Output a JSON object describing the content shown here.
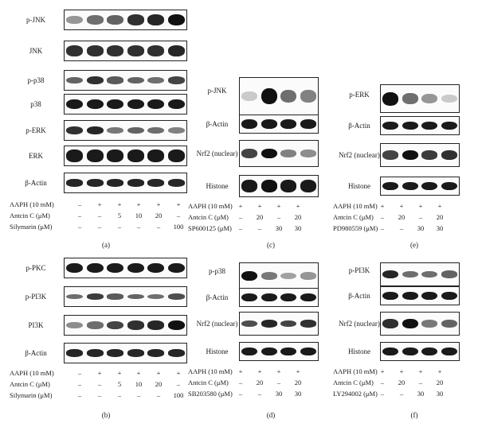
{
  "panels": [
    {
      "letter": "(a)",
      "rows": [
        {
          "label": "p-JNK"
        },
        {
          "label": "JNK"
        },
        {
          "label": "p-p38"
        },
        {
          "label": "p38"
        },
        {
          "label": "p-ERK"
        },
        {
          "label": "ERK"
        },
        {
          "label": "β-Actin"
        }
      ],
      "conditions": [
        {
          "label": "AAPH (10 mM)",
          "values": [
            "–",
            "+",
            "+",
            "+",
            "+",
            "+"
          ]
        },
        {
          "label": "Antcin C (μM)",
          "values": [
            "–",
            "–",
            "5",
            "10",
            "20",
            "–"
          ]
        },
        {
          "label": "Silymarin (μM)",
          "values": [
            "–",
            "–",
            "–",
            "–",
            "–",
            "100"
          ]
        }
      ]
    },
    {
      "letter": "(b)",
      "rows": [
        {
          "label": "p-PKC"
        },
        {
          "label": "p-PI3K"
        },
        {
          "label": "PI3K"
        },
        {
          "label": "β-Actin"
        }
      ],
      "conditions": [
        {
          "label": "AAPH (10 mM)",
          "values": [
            "–",
            "+",
            "+",
            "+",
            "+",
            "+"
          ]
        },
        {
          "label": "Antcin C (μM)",
          "values": [
            "–",
            "–",
            "5",
            "10",
            "20",
            "–"
          ]
        },
        {
          "label": "Silymarin (μM)",
          "values": [
            "–",
            "–",
            "–",
            "–",
            "–",
            "100"
          ]
        }
      ]
    },
    {
      "letter": "(c)",
      "rows": [
        {
          "label": "p-JNK"
        },
        {
          "label": "β-Actin"
        },
        {
          "label": "Nrf2 (nuclear)"
        },
        {
          "label": "Histone"
        }
      ],
      "conditions": [
        {
          "label": "AAPH (10 mM)",
          "values": [
            "+",
            "+",
            "+",
            "+"
          ]
        },
        {
          "label": "Antcin C (μM)",
          "values": [
            "–",
            "20",
            "–",
            "20"
          ]
        },
        {
          "label": "SP600125 (μM)",
          "values": [
            "–",
            "–",
            "30",
            "30"
          ]
        }
      ]
    },
    {
      "letter": "(d)",
      "rows": [
        {
          "label": "p-p38"
        },
        {
          "label": "β-Actin"
        },
        {
          "label": "Nrf2 (nuclear)"
        },
        {
          "label": "Histone"
        }
      ],
      "conditions": [
        {
          "label": "AAPH (10 mM)",
          "values": [
            "+",
            "+",
            "+",
            "+"
          ]
        },
        {
          "label": "Antcin C (μM)",
          "values": [
            "–",
            "20",
            "–",
            "20"
          ]
        },
        {
          "label": "SB203580 (μM)",
          "values": [
            "–",
            "–",
            "30",
            "30"
          ]
        }
      ]
    },
    {
      "letter": "(e)",
      "rows": [
        {
          "label": "p-ERK"
        },
        {
          "label": "β-Actin"
        },
        {
          "label": "Nrf2 (nuclear)"
        },
        {
          "label": "Histone"
        }
      ],
      "conditions": [
        {
          "label": "AAPH (10 mM)",
          "values": [
            "+",
            "+",
            "+",
            "+"
          ]
        },
        {
          "label": "Antcin C (μM)",
          "values": [
            "–",
            "20",
            "–",
            "20"
          ]
        },
        {
          "label": "PD980559 (μM)",
          "values": [
            "–",
            "–",
            "30",
            "30"
          ]
        }
      ]
    },
    {
      "letter": "(f)",
      "rows": [
        {
          "label": "p-PI3K"
        },
        {
          "label": "β-Actin"
        },
        {
          "label": "Nrf2 (nuclear)"
        },
        {
          "label": "Histone"
        }
      ],
      "conditions": [
        {
          "label": "AAPH (10 mM)",
          "values": [
            "+",
            "+",
            "+",
            "+"
          ]
        },
        {
          "label": "Antcin C (μM)",
          "values": [
            "–",
            "20",
            "–",
            "20"
          ]
        },
        {
          "label": "LY294002 (μM)",
          "values": [
            "–",
            "–",
            "30",
            "30"
          ]
        }
      ]
    }
  ]
}
